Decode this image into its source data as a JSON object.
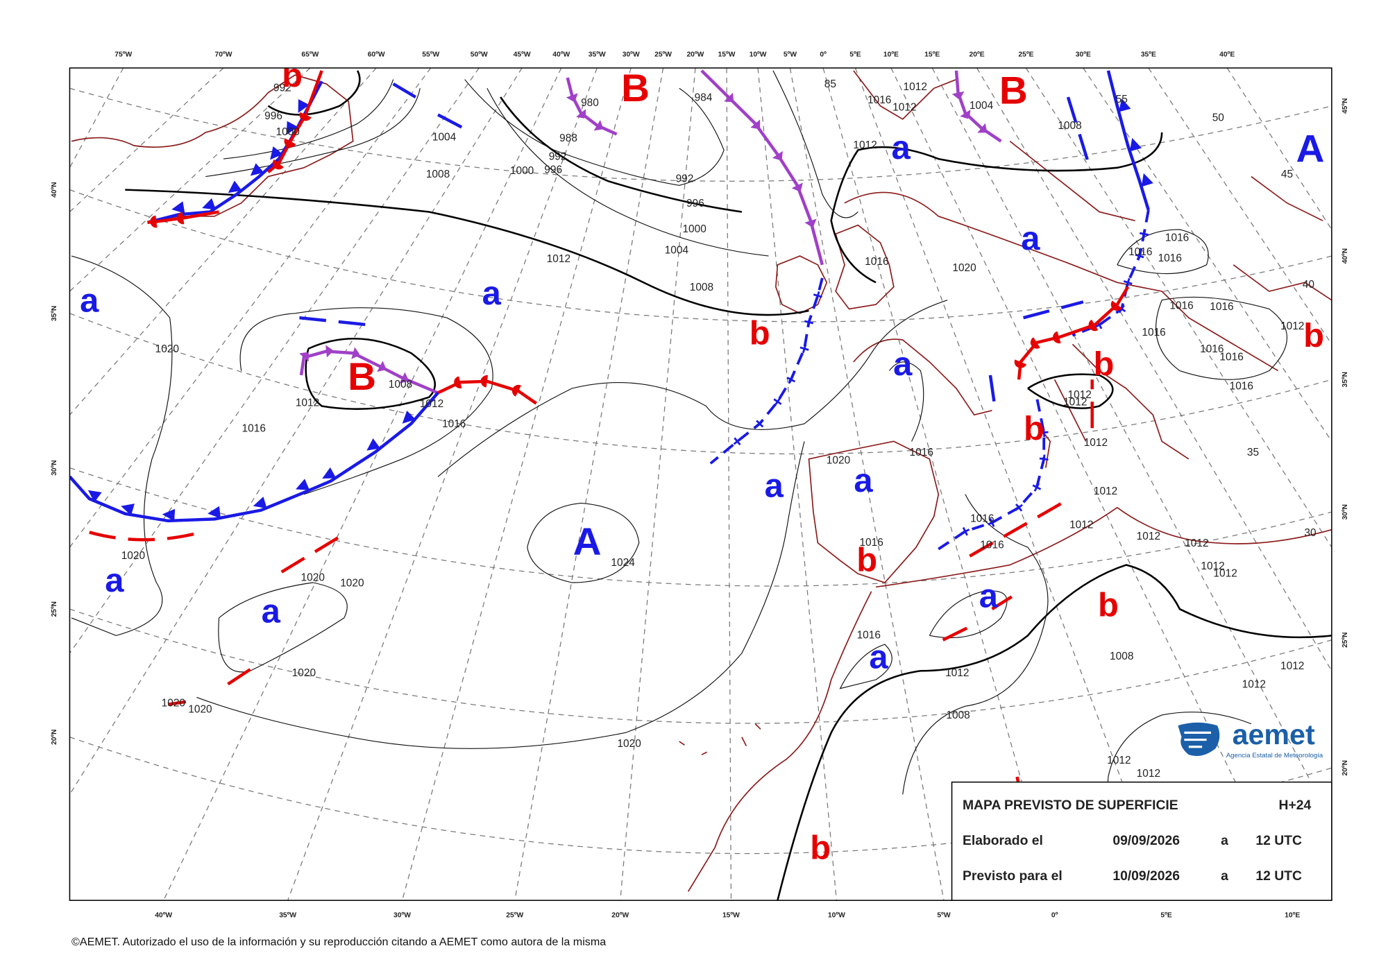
{
  "map": {
    "top_longitudes": [
      "75ºW",
      "70ºW",
      "65ºW",
      "60ºW",
      "55ºW",
      "50ºW",
      "45ºW",
      "40ºW",
      "35ºW",
      "30ºW",
      "25ºW",
      "20ºW",
      "15ºW",
      "10ºW",
      "5ºW",
      "0º",
      "5ºE",
      "10ºE",
      "15ºE",
      "20ºE",
      "25ºE",
      "30ºE",
      "35ºE",
      "40ºE"
    ],
    "bottom_longitudes": [
      "40ºW",
      "35ºW",
      "30ºW",
      "25ºW",
      "20ºW",
      "15ºW",
      "10ºW",
      "5ºW",
      "0º",
      "5ºE",
      "10ºE"
    ],
    "left_latitudes": [
      "40ºN",
      "35ºN",
      "30ºN",
      "25ºN",
      "20ºN"
    ],
    "right_latitudes": [
      "45ºN",
      "40ºN",
      "35ºN",
      "30ºN",
      "25ºN",
      "20ºN"
    ],
    "isobar_labels": [
      "992",
      "996",
      "1000",
      "1004",
      "1008",
      "980",
      "984",
      "988",
      "992",
      "996",
      "1000",
      "992",
      "996",
      "1000",
      "1004",
      "1008",
      "1012",
      "1012",
      "1016",
      "1012",
      "1012",
      "1004",
      "1008",
      "1016",
      "1020",
      "1020",
      "1016",
      "1012",
      "1008",
      "1012",
      "1016",
      "1020",
      "1020",
      "1020",
      "1024",
      "1020",
      "1020",
      "1020",
      "1020",
      "1020",
      "1016",
      "1016",
      "1016",
      "1012",
      "1008",
      "1008",
      "1016",
      "1016",
      "1012",
      "1012",
      "1012",
      "1012",
      "1012",
      "1012",
      "1012",
      "1012",
      "1012",
      "1016",
      "1016",
      "1016",
      "1016",
      "1016",
      "1016",
      "1016",
      "1016",
      "1016",
      "1012",
      "1012",
      "1012",
      "1012",
      "1012",
      "85",
      "55",
      "50",
      "45",
      "40",
      "35",
      "30"
    ],
    "pressure_centers": [
      "b",
      "B",
      "B",
      "A",
      "a",
      "a",
      "a",
      "a",
      "b",
      "B",
      "a",
      "b",
      "b",
      "b",
      "a",
      "a",
      "A",
      "a",
      "b",
      "a",
      "a",
      "b",
      "a",
      "b"
    ]
  },
  "info_box": {
    "title": "MAPA PREVISTO DE SUPERFICIE",
    "forecast_step": "H+24",
    "rows": [
      [
        "Elaborado el",
        "09/09/2026",
        "a",
        "12 UTC"
      ],
      [
        "Previsto para el",
        "10/09/2026",
        "a",
        "12 UTC"
      ]
    ]
  },
  "logo": {
    "name": "aemet",
    "subtitle": "Agencia Estatal de Meteorología"
  },
  "footer": "©AEMET. Autorizado el uso de la información y su reproducción citando a AEMET como autora de la misma"
}
